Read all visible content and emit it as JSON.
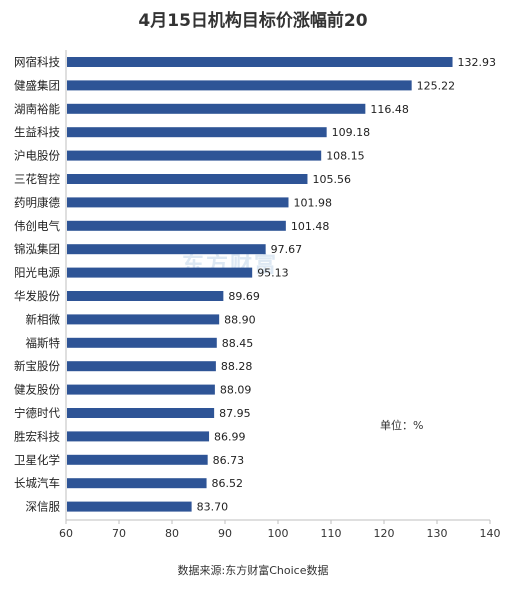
{
  "chart_data": {
    "type": "bar",
    "orientation": "horizontal",
    "title": "4月15日机构目标价涨幅前20",
    "categories": [
      "网宿科技",
      "健盛集团",
      "湖南裕能",
      "生益科技",
      "沪电股份",
      "三花智控",
      "药明康德",
      "伟创电气",
      "锦泓集团",
      "阳光电源",
      "华发股份",
      "新相微",
      "福斯特",
      "新宝股份",
      "健友股份",
      "宁德时代",
      "胜宏科技",
      "卫星化学",
      "长城汽车",
      "深信服"
    ],
    "values": [
      132.93,
      125.22,
      116.48,
      109.18,
      108.15,
      105.56,
      101.98,
      101.48,
      97.67,
      95.13,
      89.69,
      88.9,
      88.45,
      88.28,
      88.09,
      87.95,
      86.99,
      86.73,
      86.52,
      83.7
    ],
    "value_labels": [
      "132.93",
      "125.22",
      "116.48",
      "109.18",
      "108.15",
      "105.56",
      "101.98",
      "101.48",
      "97.67",
      "95.13",
      "89.69",
      "88.90",
      "88.45",
      "88.28",
      "88.09",
      "87.95",
      "86.99",
      "86.73",
      "86.52",
      "83.70"
    ],
    "xlim": [
      60,
      140
    ],
    "xticks": [
      60,
      70,
      80,
      90,
      100,
      110,
      120,
      130,
      140
    ],
    "grid": false,
    "bar_color": "#2e5496",
    "unit_label": "单位：%",
    "source": "数据来源:东方财富Choice数据",
    "watermark": "东方财富"
  }
}
